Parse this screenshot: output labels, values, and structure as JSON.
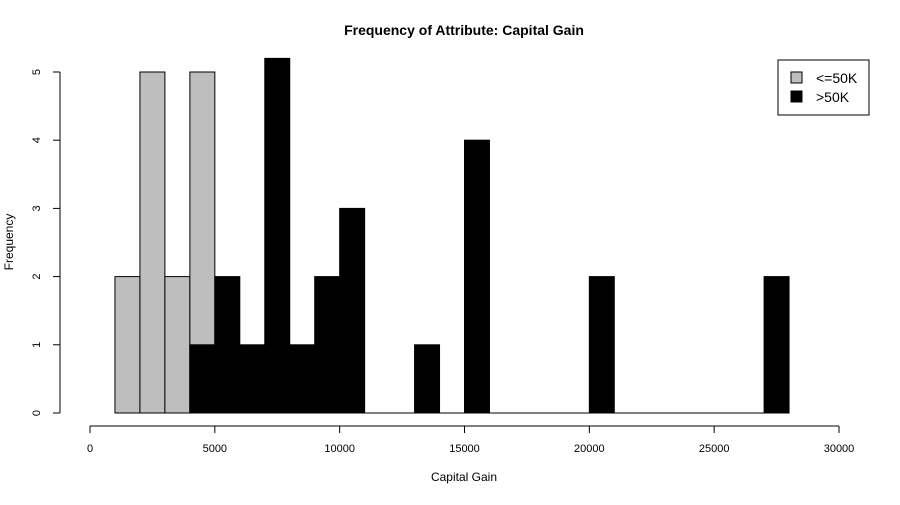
{
  "chart_data": {
    "type": "bar",
    "title": "Frequency of Attribute: Capital Gain",
    "xlabel": "Capital Gain",
    "ylabel": "Frequency",
    "xlim": [
      0,
      30000
    ],
    "ylim": [
      0,
      5
    ],
    "x_ticks": [
      0,
      5000,
      10000,
      15000,
      20000,
      25000,
      30000
    ],
    "y_ticks": [
      0,
      1,
      2,
      3,
      4,
      5
    ],
    "bin_width": 1000,
    "legend_position": "top-right",
    "grid": false,
    "series": [
      {
        "name": "<=50K",
        "color": "#bebebe",
        "bins": [
          {
            "start": 1000,
            "end": 2000,
            "count": 2
          },
          {
            "start": 2000,
            "end": 3000,
            "count": 5
          },
          {
            "start": 3000,
            "end": 4000,
            "count": 2
          },
          {
            "start": 4000,
            "end": 5000,
            "count": 5
          }
        ]
      },
      {
        "name": ">50K",
        "color": "#000000",
        "bins": [
          {
            "start": 4000,
            "end": 5000,
            "count": 1
          },
          {
            "start": 5000,
            "end": 6000,
            "count": 2
          },
          {
            "start": 6000,
            "end": 7000,
            "count": 1
          },
          {
            "start": 7000,
            "end": 8000,
            "count": 5.2
          },
          {
            "start": 8000,
            "end": 9000,
            "count": 1
          },
          {
            "start": 9000,
            "end": 10000,
            "count": 2
          },
          {
            "start": 10000,
            "end": 11000,
            "count": 3
          },
          {
            "start": 13000,
            "end": 14000,
            "count": 1
          },
          {
            "start": 15000,
            "end": 16000,
            "count": 4
          },
          {
            "start": 20000,
            "end": 21000,
            "count": 2
          },
          {
            "start": 27000,
            "end": 28000,
            "count": 2
          }
        ]
      }
    ],
    "baseline_range": [
      1000,
      28000
    ]
  }
}
